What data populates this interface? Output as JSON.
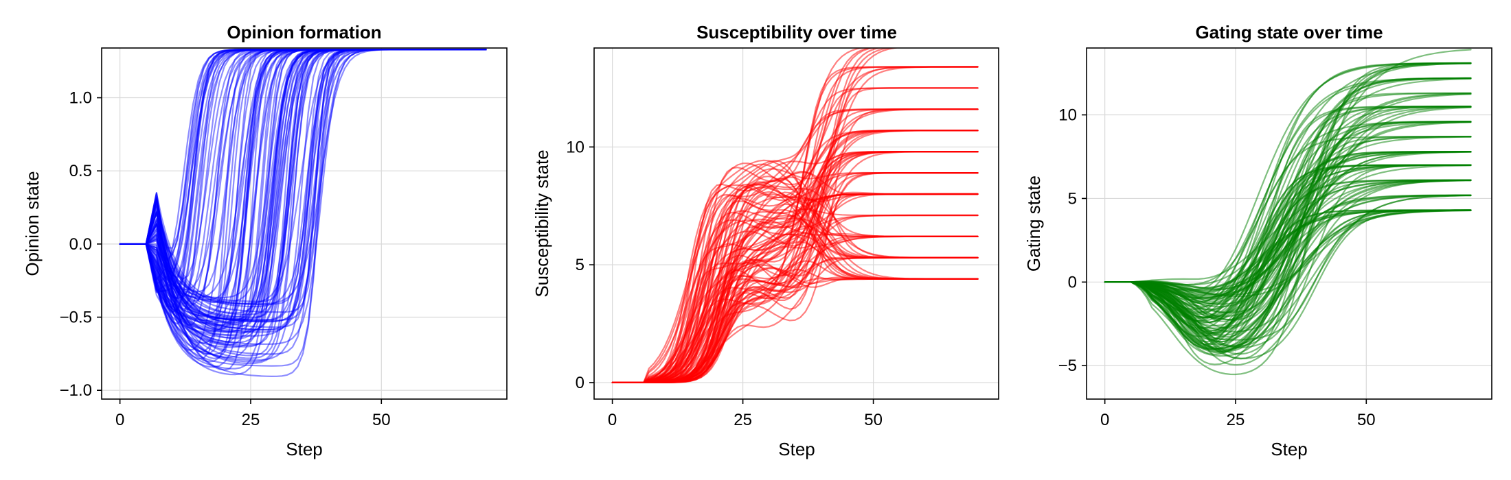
{
  "chart_data": [
    {
      "type": "line",
      "title": "Opinion formation",
      "xlabel": "Step",
      "ylabel": "Opinion state",
      "xlim": [
        -3.5,
        74
      ],
      "ylim": [
        -1.06,
        1.34
      ],
      "xticks": [
        0,
        25,
        50
      ],
      "xtick_labels": [
        "0",
        "25",
        "50"
      ],
      "yticks": [
        -1.0,
        -0.5,
        0.0,
        0.5,
        1.0
      ],
      "ytick_labels": [
        "−1.0",
        "−0.5",
        "0.0",
        "0.5",
        "1.0"
      ],
      "grid": true,
      "color": "#0000ff",
      "line_opacity": 0.45,
      "pattern": "opinion",
      "steps": 70,
      "n_series": 100,
      "final_value": 1.33,
      "min_value": -1.05
    },
    {
      "type": "line",
      "title": "Susceptibility over time",
      "xlabel": "Step",
      "ylabel": "Susceptibility state",
      "xlim": [
        -3.5,
        74
      ],
      "ylim": [
        -0.7,
        14.2
      ],
      "xticks": [
        0,
        25,
        50
      ],
      "xtick_labels": [
        "0",
        "25",
        "50"
      ],
      "yticks": [
        0,
        5,
        10
      ],
      "ytick_labels": [
        "0",
        "5",
        "10"
      ],
      "grid": true,
      "color": "#ff0000",
      "line_opacity": 0.5,
      "pattern": "susceptibility",
      "steps": 70,
      "n_series": 100,
      "plateau_levels": [
        4.4,
        5.3,
        6.2,
        7.1,
        8.0,
        8.9,
        9.8,
        10.7,
        11.6,
        12.5,
        13.4,
        14.3
      ],
      "max_value": 14.3
    },
    {
      "type": "line",
      "title": "Gating state over time",
      "xlabel": "Step",
      "ylabel": "Gating state",
      "xlim": [
        -3.5,
        74
      ],
      "ylim": [
        -7,
        14
      ],
      "xticks": [
        0,
        25,
        50
      ],
      "xtick_labels": [
        "0",
        "25",
        "50"
      ],
      "yticks": [
        -5,
        0,
        5,
        10
      ],
      "ytick_labels": [
        "−5",
        "0",
        "5",
        "10"
      ],
      "grid": true,
      "color": "#008000",
      "line_opacity": 0.5,
      "pattern": "gating",
      "steps": 70,
      "n_series": 100,
      "plateau_levels": [
        4.3,
        5.2,
        6.1,
        7.0,
        7.8,
        8.7,
        9.6,
        10.5,
        11.3,
        12.2,
        13.1,
        14.0
      ],
      "min_value": -6.9
    }
  ]
}
